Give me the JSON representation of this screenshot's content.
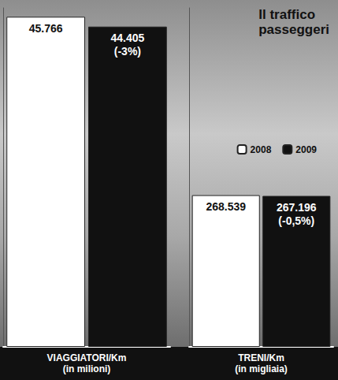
{
  "chart_data": [
    {
      "type": "bar",
      "title": "Il traffico\npasseggeri",
      "categories": [
        "VIAGGIATORI/Km\n(in milioni)"
      ],
      "series": [
        {
          "name": "2008",
          "color": "#ffffff",
          "values": [
            45766
          ],
          "value_labels": [
            "45.766"
          ]
        },
        {
          "name": "2009",
          "color": "#111111",
          "values": [
            44405
          ],
          "value_labels": [
            "44.405\n(-3%)"
          ]
        }
      ],
      "ylim": [
        0,
        47000
      ],
      "data_labels": true,
      "tick_labels": false,
      "legend": "right"
    },
    {
      "type": "bar",
      "categories": [
        "TRENI/Km\n(in migliaia)"
      ],
      "series": [
        {
          "name": "2008",
          "color": "#ffffff",
          "values": [
            268539
          ],
          "value_labels": [
            "268.539"
          ]
        },
        {
          "name": "2009",
          "color": "#111111",
          "values": [
            267196
          ],
          "value_labels": [
            "267.196\n(-0,5%)"
          ]
        }
      ],
      "ylim": [
        0,
        600000
      ],
      "data_labels": true,
      "tick_labels": false
    }
  ]
}
